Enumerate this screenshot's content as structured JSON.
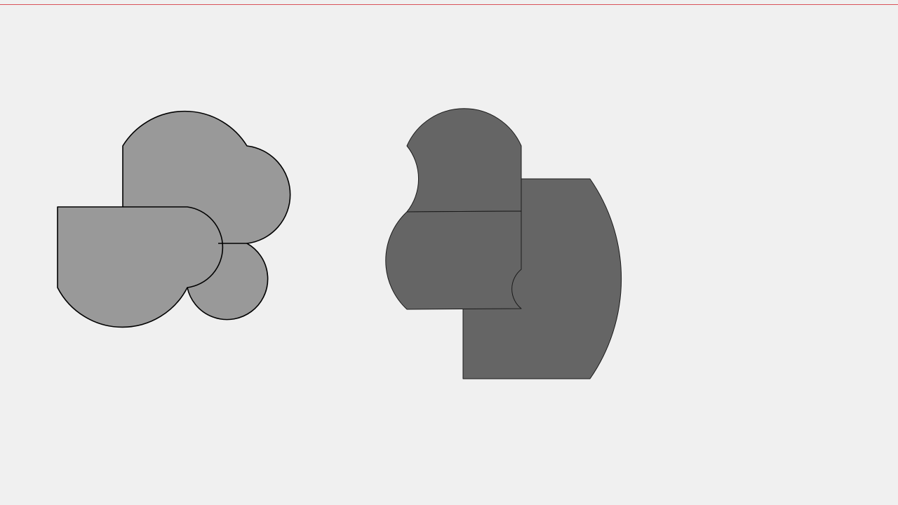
{
  "colors": {
    "background": "#f0f0f0",
    "guide_line": "#d9535a",
    "target_fill": "#999999",
    "target_stroke": "#000000",
    "assembly_fill": "#656565",
    "assembly_stroke": "#1a1a1a"
  },
  "puzzle": {
    "target_shape": {
      "piece_count": 1
    },
    "assembly": {
      "piece_count": 3
    }
  }
}
